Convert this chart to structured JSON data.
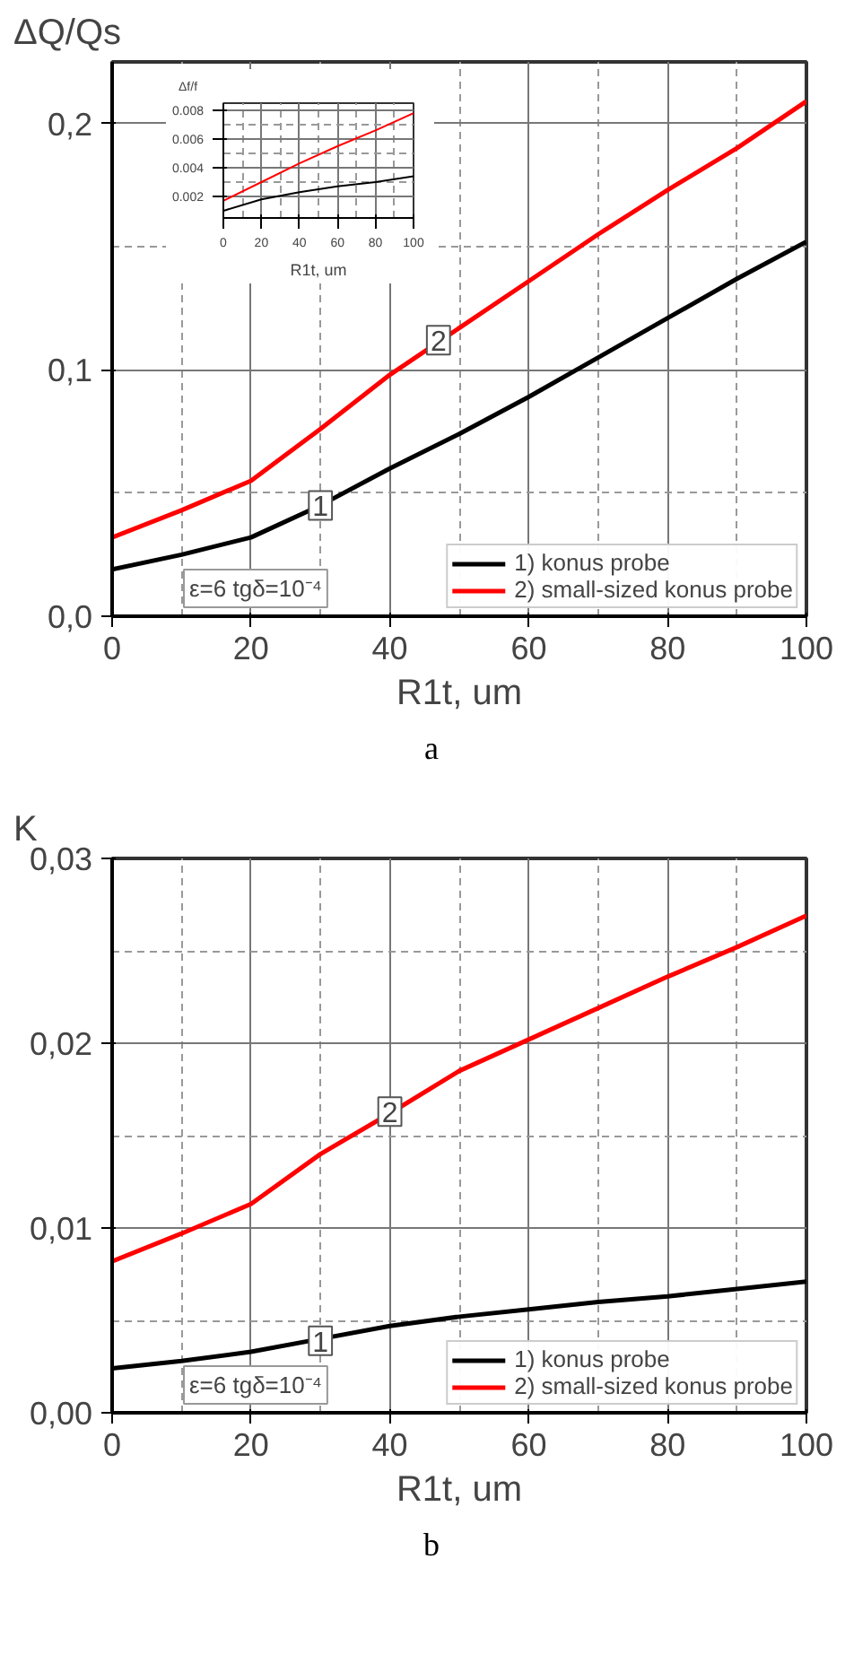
{
  "chart_data": [
    {
      "type": "line",
      "ylabel": "ΔQ/Qs",
      "xlabel": "R1t, um",
      "xlim": [
        0,
        100
      ],
      "ylim": [
        0,
        0.225
      ],
      "xticks": [
        0,
        20,
        40,
        60,
        80,
        100
      ],
      "yticks": [
        {
          "value": 0,
          "label": "0,0"
        },
        {
          "value": 0.1,
          "label": "0,1"
        },
        {
          "value": 0.2,
          "label": "0,2"
        }
      ],
      "grid": true,
      "legend": "bottom right",
      "x": [
        0,
        10,
        20,
        30,
        40,
        50,
        60,
        70,
        80,
        90,
        100
      ],
      "series": [
        {
          "name": "1) konus probe",
          "color": "#000000",
          "values": [
            0.019,
            0.025,
            0.032,
            0.045,
            0.06,
            0.074,
            0.089,
            0.105,
            0.121,
            0.137,
            0.152
          ]
        },
        {
          "name": "2) small-sized konus probe",
          "color": "#ff0000",
          "values": [
            0.032,
            0.043,
            0.055,
            0.076,
            0.098,
            0.117,
            0.136,
            0.155,
            0.173,
            0.19,
            0.209
          ]
        }
      ],
      "annotations": [
        "ε=6 tgδ=10⁻⁴",
        {
          "text": "1",
          "x": 30,
          "y": 0.045
        },
        {
          "text": "2",
          "x": 47,
          "y": 0.112
        },
        "a"
      ]
    },
    {
      "type": "line",
      "ylabel": "Δf/f",
      "xlabel": "R1t, um",
      "xlim": [
        0,
        100
      ],
      "ylim": [
        0.0005,
        0.0085
      ],
      "xticks": [
        0,
        20,
        40,
        60,
        80,
        100
      ],
      "yticks": [
        0.002,
        0.004,
        0.006,
        0.008
      ],
      "grid": true,
      "x": [
        0,
        20,
        40,
        60,
        80,
        100
      ],
      "series": [
        {
          "color": "#000000",
          "values": [
            0.001,
            0.0018,
            0.0023,
            0.0027,
            0.003,
            0.0034
          ]
        },
        {
          "color": "#ff0000",
          "values": [
            0.0017,
            0.003,
            0.0043,
            0.0055,
            0.0066,
            0.0078
          ]
        }
      ]
    },
    {
      "type": "line",
      "ylabel": "K",
      "xlabel": "R1t, um",
      "xlim": [
        0,
        100
      ],
      "ylim": [
        0,
        0.03
      ],
      "xticks": [
        0,
        20,
        40,
        60,
        80,
        100
      ],
      "yticks": [
        {
          "value": 0,
          "label": "0,00"
        },
        {
          "value": 0.01,
          "label": "0,01"
        },
        {
          "value": 0.02,
          "label": "0,02"
        },
        {
          "value": 0.03,
          "label": "0,03"
        }
      ],
      "grid": true,
      "legend": "bottom right",
      "x": [
        0,
        10,
        20,
        30,
        40,
        50,
        60,
        70,
        80,
        90,
        100
      ],
      "series": [
        {
          "name": "1) konus probe",
          "color": "#000000",
          "values": [
            0.0024,
            0.0028,
            0.0033,
            0.004,
            0.0047,
            0.0052,
            0.0056,
            0.006,
            0.0063,
            0.0067,
            0.0071
          ]
        },
        {
          "name": "2) small-sized konus probe",
          "color": "#ff0000",
          "values": [
            0.0082,
            0.0097,
            0.0113,
            0.014,
            0.0162,
            0.0185,
            0.0202,
            0.0219,
            0.0236,
            0.0252,
            0.0269
          ]
        }
      ],
      "annotations": [
        "ε=6 tgδ=10⁻⁴",
        {
          "text": "1",
          "x": 30,
          "y": 0.0039
        },
        {
          "text": "2",
          "x": 40,
          "y": 0.0163
        },
        "b"
      ]
    }
  ]
}
